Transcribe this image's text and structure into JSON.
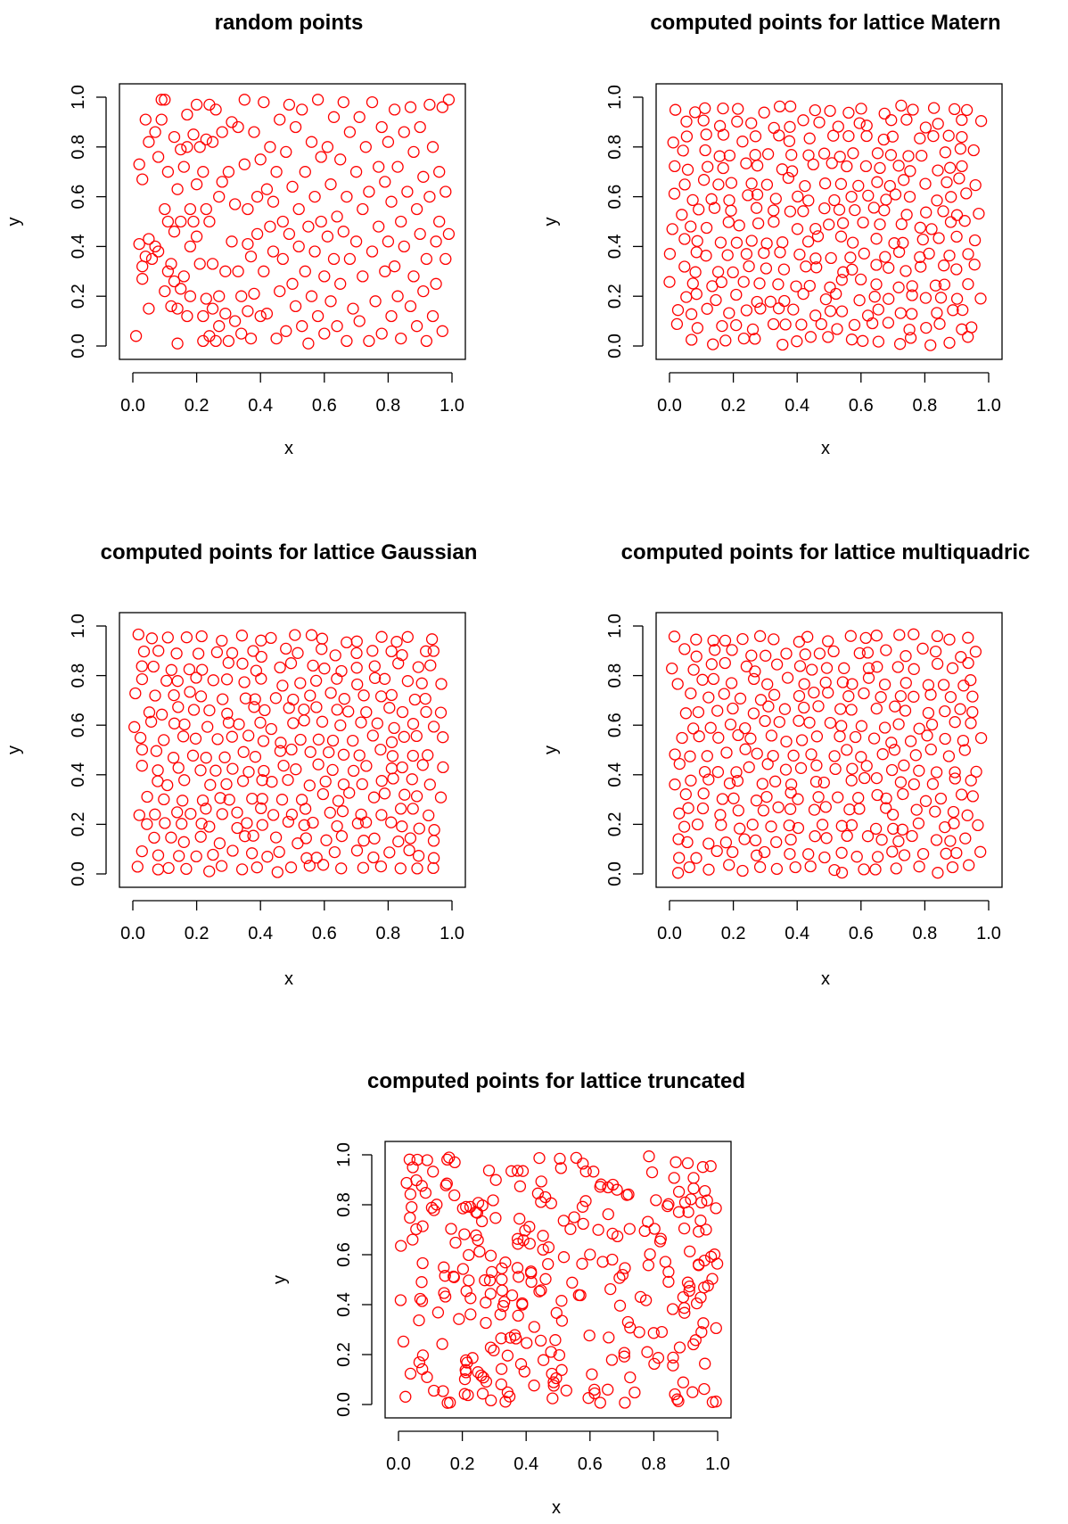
{
  "chart_data": [
    {
      "type": "scatter",
      "title": "random points",
      "xlabel": "x",
      "ylabel": "y",
      "xlim": [
        0,
        1
      ],
      "ylim": [
        0,
        1
      ],
      "x_ticks": [
        "0.0",
        "0.2",
        "0.4",
        "0.6",
        "0.8",
        "1.0"
      ],
      "y_ticks": [
        "0.0",
        "0.2",
        "0.4",
        "0.6",
        "0.8",
        "1.0"
      ],
      "grid": false,
      "series": [
        {
          "color": "#ff0000",
          "marker": "open-circle",
          "points": [
            [
              0.01,
              0.04
            ],
            [
              0.02,
              0.73
            ],
            [
              0.02,
              0.41
            ],
            [
              0.03,
              0.27
            ],
            [
              0.03,
              0.32
            ],
            [
              0.03,
              0.67
            ],
            [
              0.04,
              0.36
            ],
            [
              0.04,
              0.91
            ],
            [
              0.05,
              0.15
            ],
            [
              0.05,
              0.82
            ],
            [
              0.05,
              0.43
            ],
            [
              0.06,
              0.35
            ],
            [
              0.07,
              0.4
            ],
            [
              0.07,
              0.86
            ],
            [
              0.08,
              0.76
            ],
            [
              0.08,
              0.38
            ],
            [
              0.09,
              0.91
            ],
            [
              0.09,
              0.99
            ],
            [
              0.1,
              0.99
            ],
            [
              0.1,
              0.55
            ],
            [
              0.1,
              0.22
            ],
            [
              0.11,
              0.3
            ],
            [
              0.11,
              0.5
            ],
            [
              0.11,
              0.7
            ],
            [
              0.12,
              0.16
            ],
            [
              0.12,
              0.33
            ],
            [
              0.13,
              0.46
            ],
            [
              0.13,
              0.84
            ],
            [
              0.13,
              0.26
            ],
            [
              0.14,
              0.15
            ],
            [
              0.14,
              0.63
            ],
            [
              0.14,
              0.01
            ],
            [
              0.15,
              0.79
            ],
            [
              0.15,
              0.5
            ],
            [
              0.15,
              0.23
            ],
            [
              0.16,
              0.72
            ],
            [
              0.16,
              0.28
            ],
            [
              0.17,
              0.12
            ],
            [
              0.17,
              0.93
            ],
            [
              0.17,
              0.8
            ],
            [
              0.18,
              0.4
            ],
            [
              0.18,
              0.2
            ],
            [
              0.18,
              0.55
            ],
            [
              0.19,
              0.5
            ],
            [
              0.19,
              0.85
            ],
            [
              0.2,
              0.44
            ],
            [
              0.2,
              0.97
            ],
            [
              0.2,
              0.65
            ],
            [
              0.21,
              0.33
            ],
            [
              0.21,
              0.8
            ],
            [
              0.22,
              0.12
            ],
            [
              0.22,
              0.02
            ],
            [
              0.22,
              0.7
            ],
            [
              0.23,
              0.55
            ],
            [
              0.23,
              0.83
            ],
            [
              0.23,
              0.19
            ],
            [
              0.24,
              0.5
            ],
            [
              0.24,
              0.97
            ],
            [
              0.24,
              0.04
            ],
            [
              0.25,
              0.33
            ],
            [
              0.25,
              0.82
            ],
            [
              0.25,
              0.15
            ],
            [
              0.26,
              0.02
            ],
            [
              0.26,
              0.95
            ],
            [
              0.27,
              0.6
            ],
            [
              0.27,
              0.2
            ],
            [
              0.27,
              0.08
            ],
            [
              0.28,
              0.66
            ],
            [
              0.28,
              0.86
            ],
            [
              0.29,
              0.3
            ],
            [
              0.29,
              0.13
            ],
            [
              0.3,
              0.7
            ],
            [
              0.3,
              0.02
            ],
            [
              0.31,
              0.42
            ],
            [
              0.31,
              0.9
            ],
            [
              0.32,
              0.1
            ],
            [
              0.32,
              0.57
            ],
            [
              0.33,
              0.88
            ],
            [
              0.33,
              0.3
            ],
            [
              0.34,
              0.05
            ],
            [
              0.34,
              0.2
            ],
            [
              0.35,
              0.73
            ],
            [
              0.35,
              0.99
            ],
            [
              0.36,
              0.41
            ],
            [
              0.36,
              0.55
            ],
            [
              0.36,
              0.14
            ],
            [
              0.37,
              0.36
            ],
            [
              0.37,
              0.03
            ],
            [
              0.38,
              0.21
            ],
            [
              0.38,
              0.86
            ],
            [
              0.39,
              0.6
            ],
            [
              0.39,
              0.45
            ],
            [
              0.4,
              0.12
            ],
            [
              0.4,
              0.75
            ],
            [
              0.41,
              0.98
            ],
            [
              0.41,
              0.3
            ],
            [
              0.42,
              0.63
            ],
            [
              0.42,
              0.13
            ],
            [
              0.43,
              0.8
            ],
            [
              0.43,
              0.48
            ],
            [
              0.44,
              0.58
            ],
            [
              0.44,
              0.38
            ],
            [
              0.45,
              0.03
            ],
            [
              0.45,
              0.7
            ],
            [
              0.46,
              0.91
            ],
            [
              0.46,
              0.22
            ],
            [
              0.47,
              0.5
            ],
            [
              0.47,
              0.35
            ],
            [
              0.48,
              0.78
            ],
            [
              0.48,
              0.06
            ],
            [
              0.49,
              0.45
            ],
            [
              0.49,
              0.97
            ],
            [
              0.5,
              0.25
            ],
            [
              0.5,
              0.64
            ],
            [
              0.51,
              0.88
            ],
            [
              0.51,
              0.16
            ],
            [
              0.52,
              0.4
            ],
            [
              0.52,
              0.55
            ],
            [
              0.53,
              0.08
            ],
            [
              0.53,
              0.95
            ],
            [
              0.54,
              0.3
            ],
            [
              0.54,
              0.7
            ],
            [
              0.55,
              0.01
            ],
            [
              0.55,
              0.48
            ],
            [
              0.56,
              0.82
            ],
            [
              0.56,
              0.2
            ],
            [
              0.57,
              0.6
            ],
            [
              0.57,
              0.38
            ],
            [
              0.58,
              0.99
            ],
            [
              0.58,
              0.12
            ],
            [
              0.59,
              0.5
            ],
            [
              0.59,
              0.76
            ],
            [
              0.6,
              0.28
            ],
            [
              0.6,
              0.05
            ],
            [
              0.61,
              0.8
            ],
            [
              0.61,
              0.44
            ],
            [
              0.62,
              0.65
            ],
            [
              0.62,
              0.18
            ],
            [
              0.63,
              0.92
            ],
            [
              0.63,
              0.35
            ],
            [
              0.64,
              0.52
            ],
            [
              0.64,
              0.08
            ],
            [
              0.65,
              0.75
            ],
            [
              0.65,
              0.25
            ],
            [
              0.66,
              0.46
            ],
            [
              0.66,
              0.98
            ],
            [
              0.67,
              0.6
            ],
            [
              0.67,
              0.02
            ],
            [
              0.68,
              0.35
            ],
            [
              0.68,
              0.86
            ],
            [
              0.69,
              0.15
            ],
            [
              0.7,
              0.7
            ],
            [
              0.7,
              0.42
            ],
            [
              0.71,
              0.92
            ],
            [
              0.71,
              0.1
            ],
            [
              0.72,
              0.55
            ],
            [
              0.72,
              0.28
            ],
            [
              0.73,
              0.8
            ],
            [
              0.74,
              0.02
            ],
            [
              0.74,
              0.62
            ],
            [
              0.75,
              0.38
            ],
            [
              0.75,
              0.98
            ],
            [
              0.76,
              0.18
            ],
            [
              0.77,
              0.72
            ],
            [
              0.77,
              0.48
            ],
            [
              0.78,
              0.88
            ],
            [
              0.78,
              0.05
            ],
            [
              0.79,
              0.3
            ],
            [
              0.79,
              0.66
            ],
            [
              0.8,
              0.42
            ],
            [
              0.8,
              0.82
            ],
            [
              0.81,
              0.12
            ],
            [
              0.81,
              0.58
            ],
            [
              0.82,
              0.95
            ],
            [
              0.82,
              0.32
            ],
            [
              0.83,
              0.2
            ],
            [
              0.83,
              0.72
            ],
            [
              0.84,
              0.5
            ],
            [
              0.84,
              0.03
            ],
            [
              0.85,
              0.86
            ],
            [
              0.85,
              0.4
            ],
            [
              0.86,
              0.62
            ],
            [
              0.87,
              0.16
            ],
            [
              0.87,
              0.96
            ],
            [
              0.88,
              0.28
            ],
            [
              0.88,
              0.78
            ],
            [
              0.89,
              0.08
            ],
            [
              0.89,
              0.55
            ],
            [
              0.9,
              0.45
            ],
            [
              0.9,
              0.88
            ],
            [
              0.91,
              0.22
            ],
            [
              0.91,
              0.68
            ],
            [
              0.92,
              0.35
            ],
            [
              0.92,
              0.02
            ],
            [
              0.93,
              0.97
            ],
            [
              0.93,
              0.6
            ],
            [
              0.94,
              0.12
            ],
            [
              0.94,
              0.8
            ],
            [
              0.95,
              0.42
            ],
            [
              0.95,
              0.25
            ],
            [
              0.96,
              0.7
            ],
            [
              0.96,
              0.5
            ],
            [
              0.97,
              0.96
            ],
            [
              0.97,
              0.06
            ],
            [
              0.98,
              0.35
            ],
            [
              0.98,
              0.62
            ],
            [
              0.99,
              0.45
            ],
            [
              0.99,
              0.99
            ]
          ]
        }
      ]
    },
    {
      "type": "scatter",
      "title": "computed points for lattice Matern",
      "xlabel": "x",
      "ylabel": "y",
      "xlim": [
        0,
        1
      ],
      "ylim": [
        0,
        1
      ],
      "x_ticks": [
        "0.0",
        "0.2",
        "0.4",
        "0.6",
        "0.8",
        "1.0"
      ],
      "y_ticks": [
        "0.0",
        "0.2",
        "0.4",
        "0.6",
        "0.8",
        "1.0"
      ],
      "grid": false,
      "series": [
        {
          "color": "#ff0000",
          "marker": "open-circle",
          "pattern": "near-uniform"
        }
      ]
    },
    {
      "type": "scatter",
      "title": "computed points for lattice Gaussian",
      "xlabel": "x",
      "ylabel": "y",
      "xlim": [
        0,
        1
      ],
      "ylim": [
        0,
        1
      ],
      "x_ticks": [
        "0.0",
        "0.2",
        "0.4",
        "0.6",
        "0.8",
        "1.0"
      ],
      "y_ticks": [
        "0.0",
        "0.2",
        "0.4",
        "0.6",
        "0.8",
        "1.0"
      ],
      "grid": false,
      "series": [
        {
          "color": "#ff0000",
          "marker": "open-circle",
          "pattern": "near-uniform"
        }
      ]
    },
    {
      "type": "scatter",
      "title": "computed points for lattice multiquadric",
      "xlabel": "x",
      "ylabel": "y",
      "xlim": [
        0,
        1
      ],
      "ylim": [
        0,
        1
      ],
      "x_ticks": [
        "0.0",
        "0.2",
        "0.4",
        "0.6",
        "0.8",
        "1.0"
      ],
      "y_ticks": [
        "0.0",
        "0.2",
        "0.4",
        "0.6",
        "0.8",
        "1.0"
      ],
      "grid": false,
      "series": [
        {
          "color": "#ff0000",
          "marker": "open-circle",
          "pattern": "near-uniform"
        }
      ]
    },
    {
      "type": "scatter",
      "title": "computed points for lattice truncated",
      "xlabel": "x",
      "ylabel": "y",
      "xlim": [
        0,
        1
      ],
      "ylim": [
        0,
        1
      ],
      "x_ticks": [
        "0.0",
        "0.2",
        "0.4",
        "0.6",
        "0.8",
        "1.0"
      ],
      "y_ticks": [
        "0.0",
        "0.2",
        "0.4",
        "0.6",
        "0.8",
        "1.0"
      ],
      "grid": false,
      "series": [
        {
          "color": "#ff0000",
          "marker": "open-circle",
          "pattern": "random-like"
        }
      ]
    }
  ]
}
